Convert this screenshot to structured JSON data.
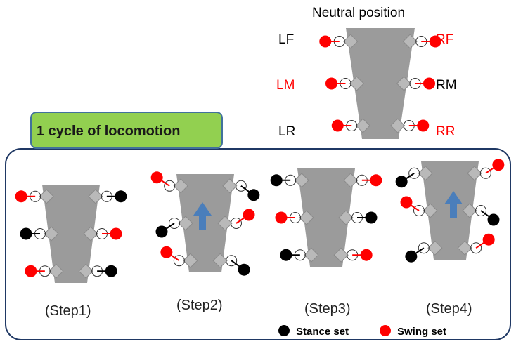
{
  "title": "Neutral position",
  "cycle_label": "1 cycle of locomotion",
  "labels": {
    "LF": "LF",
    "RF": "RF",
    "LM": "LM",
    "RM": "RM",
    "LR": "LR",
    "RR": "RR"
  },
  "label_colors": {
    "LF": "#000000",
    "RF": "#ff0000",
    "LM": "#ff0000",
    "RM": "#000000",
    "LR": "#000000",
    "RR": "#ff0000"
  },
  "steps": [
    "(Step1)",
    "(Step2)",
    "(Step3)",
    "(Step4)"
  ],
  "legend": {
    "stance": "Stance set",
    "swing": "Swing set"
  },
  "colors": {
    "stance": "#000000",
    "swing": "#ff0000",
    "body": "#9b9b9b",
    "joint": "#b9b9b9",
    "panel_border": "#1f3864",
    "header_fill": "#92d050",
    "header_border": "#41719c",
    "arrow": "#4a7ebb"
  }
}
